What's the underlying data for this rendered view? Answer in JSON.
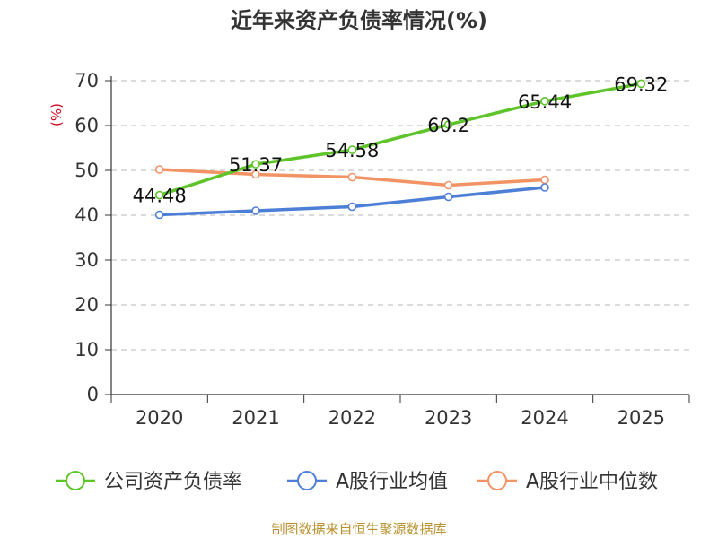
{
  "chart_data": {
    "type": "line",
    "title": "近年来资产负债率情况(%)",
    "ylabel": "(%)",
    "xlabel": "",
    "categories": [
      "2020",
      "2021",
      "2022",
      "2023",
      "2024",
      "2025"
    ],
    "ylim": [
      0,
      70
    ],
    "yticks": [
      0,
      10,
      20,
      30,
      40,
      50,
      60,
      70
    ],
    "grid": true,
    "legend_position": "bottom",
    "series": [
      {
        "name": "公司资产负债率",
        "color": "#5ec42a",
        "values": [
          44.48,
          51.37,
          54.58,
          60.2,
          65.44,
          69.32
        ],
        "labels": [
          "44.48",
          "51.37",
          "54.58",
          "60.2",
          "65.44",
          "69.32"
        ]
      },
      {
        "name": "A股行业均值",
        "color": "#4e7fd6",
        "values": [
          40.1,
          41.0,
          41.9,
          44.1,
          46.2,
          null
        ]
      },
      {
        "name": "A股行业中位数",
        "color": "#f29365",
        "values": [
          50.2,
          49.1,
          48.5,
          46.7,
          47.9,
          null
        ]
      }
    ],
    "source": "制图数据来自恒生聚源数据库"
  }
}
